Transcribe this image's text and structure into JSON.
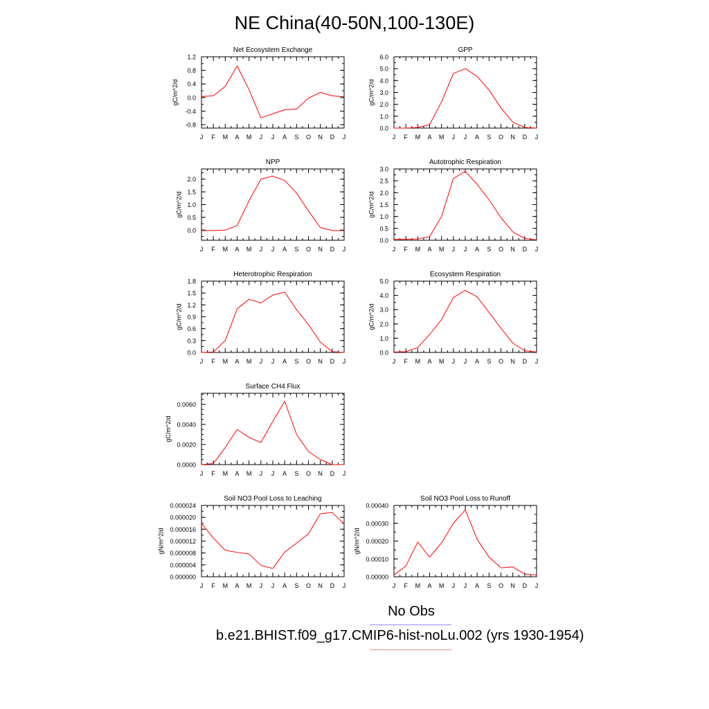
{
  "title": "NE China(40-50N,100-130E)",
  "legend": {
    "obs_label": "No Obs",
    "model_label": "b.e21.BHIST.f09_g17.CMIP6-hist-noLu.002 (yrs 1930-1954)"
  },
  "colors": {
    "series": "#ff0000",
    "obs_line": "#8a8aee",
    "model_line": "#ee8a8a",
    "axis": "#000000"
  },
  "chart_data": [
    {
      "type": "line",
      "title": "Net Ecosystem Exchange",
      "ylabel": "gC/m^2/d",
      "x": [
        "J",
        "F",
        "M",
        "A",
        "M",
        "J",
        "J",
        "A",
        "S",
        "O",
        "N",
        "D",
        "J"
      ],
      "ylim": [
        -0.9,
        1.2
      ],
      "yticks": [
        1.2,
        0.8,
        0.4,
        0.0,
        -0.4,
        -0.8
      ],
      "ytick_labels": [
        "1.2",
        "0.8",
        "0.4",
        "0.0",
        "-0.4",
        "-0.8"
      ],
      "minor_ytick_step": 0.2,
      "series": [
        {
          "values": [
            0.03,
            0.05,
            0.33,
            0.93,
            0.23,
            -0.6,
            -0.48,
            -0.36,
            -0.34,
            -0.02,
            0.15,
            0.05,
            0.02
          ]
        }
      ]
    },
    {
      "type": "line",
      "title": "GPP",
      "ylabel": "gC/m^2/d",
      "x": [
        "J",
        "F",
        "M",
        "A",
        "M",
        "J",
        "J",
        "A",
        "S",
        "O",
        "N",
        "D",
        "J"
      ],
      "ylim": [
        0,
        6
      ],
      "yticks": [
        6,
        5,
        4,
        3,
        2,
        1,
        0
      ],
      "ytick_labels": [
        "6.0",
        "5.0",
        "4.0",
        "3.0",
        "2.0",
        "1.0",
        "0.0"
      ],
      "minor_ytick_step": 0.5,
      "series": [
        {
          "values": [
            0.0,
            0.0,
            0.05,
            0.3,
            2.2,
            4.6,
            5.0,
            4.35,
            3.2,
            1.7,
            0.5,
            0.05,
            0.0
          ]
        }
      ]
    },
    {
      "type": "line",
      "title": "NPP",
      "ylabel": "gC/m^2/d",
      "x": [
        "J",
        "F",
        "M",
        "A",
        "M",
        "J",
        "J",
        "A",
        "S",
        "O",
        "N",
        "D",
        "J"
      ],
      "ylim": [
        -0.4,
        2.4
      ],
      "yticks": [
        2.0,
        1.5,
        1.0,
        0.5,
        0.0
      ],
      "ytick_labels": [
        "2.0",
        "1.5",
        "1.0",
        "0.5",
        "0.0"
      ],
      "minor_ytick_step": 0.25,
      "series": [
        {
          "values": [
            -0.02,
            -0.02,
            0.0,
            0.18,
            1.15,
            2.0,
            2.12,
            1.95,
            1.45,
            0.75,
            0.1,
            -0.02,
            -0.02
          ]
        }
      ]
    },
    {
      "type": "line",
      "title": "Autotrophic Respiration",
      "ylabel": "gC/m^2/d",
      "x": [
        "J",
        "F",
        "M",
        "A",
        "M",
        "J",
        "J",
        "A",
        "S",
        "O",
        "N",
        "D",
        "J"
      ],
      "ylim": [
        0,
        3
      ],
      "yticks": [
        3.0,
        2.5,
        2.0,
        1.5,
        1.0,
        0.5,
        0.0
      ],
      "ytick_labels": [
        "3.0",
        "2.5",
        "2.0",
        "1.5",
        "1.0",
        "0.5",
        "0.0"
      ],
      "minor_ytick_step": 0.25,
      "series": [
        {
          "values": [
            0.04,
            0.04,
            0.06,
            0.15,
            1.0,
            2.6,
            2.9,
            2.35,
            1.7,
            0.95,
            0.35,
            0.08,
            0.02
          ]
        }
      ]
    },
    {
      "type": "line",
      "title": "Heterotrophic Respiration",
      "ylabel": "gC/m^2/d",
      "x": [
        "J",
        "F",
        "M",
        "A",
        "M",
        "J",
        "J",
        "A",
        "S",
        "O",
        "N",
        "D",
        "J"
      ],
      "ylim": [
        0,
        1.8
      ],
      "yticks": [
        1.8,
        1.5,
        1.2,
        0.9,
        0.6,
        0.3,
        0.0
      ],
      "ytick_labels": [
        "1.8",
        "1.5",
        "1.2",
        "0.9",
        "0.6",
        "0.3",
        "0.0"
      ],
      "minor_ytick_step": 0.15,
      "series": [
        {
          "values": [
            0.0,
            0.01,
            0.3,
            1.1,
            1.34,
            1.25,
            1.45,
            1.52,
            1.08,
            0.7,
            0.26,
            0.02,
            0.0
          ]
        }
      ]
    },
    {
      "type": "line",
      "title": "Ecosystem Respiration",
      "ylabel": "gC/m^2/d",
      "x": [
        "J",
        "F",
        "M",
        "A",
        "M",
        "J",
        "J",
        "A",
        "S",
        "O",
        "N",
        "D",
        "J"
      ],
      "ylim": [
        0,
        5
      ],
      "yticks": [
        5.0,
        4.0,
        3.0,
        2.0,
        1.0,
        0.0
      ],
      "ytick_labels": [
        "5.0",
        "4.0",
        "3.0",
        "2.0",
        "1.0",
        "0.0"
      ],
      "minor_ytick_step": 0.5,
      "series": [
        {
          "values": [
            0.03,
            0.05,
            0.35,
            1.25,
            2.3,
            3.85,
            4.35,
            3.9,
            2.8,
            1.7,
            0.65,
            0.12,
            0.03
          ]
        }
      ]
    },
    {
      "type": "line",
      "title": "Surface CH4 Flux",
      "ylabel": "gC/m^2/d",
      "x": [
        "J",
        "F",
        "M",
        "A",
        "M",
        "J",
        "J",
        "A",
        "S",
        "O",
        "N",
        "D",
        "J"
      ],
      "ylim": [
        0,
        0.0071
      ],
      "yticks": [
        0.006,
        0.004,
        0.002,
        0.0
      ],
      "ytick_labels": [
        "0.0060",
        "0.0040",
        "0.0020",
        "0.0000"
      ],
      "minor_ytick_step": 0.0005,
      "series": [
        {
          "values": [
            0.0,
            0.0001,
            0.0017,
            0.0035,
            0.0027,
            0.0022,
            0.0043,
            0.0063,
            0.003,
            0.0013,
            0.0005,
            0.0,
            0.0
          ]
        }
      ]
    },
    null,
    {
      "type": "line",
      "title": "Soil NO3 Pool Loss to Leaching",
      "ylabel": "gN/m^2/d",
      "x": [
        "J",
        "F",
        "M",
        "A",
        "M",
        "J",
        "J",
        "A",
        "S",
        "O",
        "N",
        "D",
        "J"
      ],
      "ylim": [
        0,
        2.4e-05
      ],
      "yticks": [
        2.4e-05,
        2e-05,
        1.6e-05,
        1.2e-05,
        8e-06,
        4e-06,
        0.0
      ],
      "ytick_labels": [
        "0.000024",
        "0.000020",
        "0.000016",
        "0.000012",
        "0.000008",
        "0.000004",
        "0.000000"
      ],
      "minor_ytick_step": 2e-06,
      "series": [
        {
          "values": [
            1.8e-05,
            1.3e-05,
            8.9e-06,
            8.2e-06,
            7.7e-06,
            3.8e-06,
            2.8e-06,
            8.3e-06,
            1.13e-05,
            1.45e-05,
            2.12e-05,
            2.16e-05,
            1.78e-05
          ]
        }
      ]
    },
    {
      "type": "line",
      "title": "Soil NO3 Pool Loss to Runoff",
      "ylabel": "gN/m^2/d",
      "x": [
        "J",
        "F",
        "M",
        "A",
        "M",
        "J",
        "J",
        "A",
        "S",
        "O",
        "N",
        "D",
        "J"
      ],
      "ylim": [
        0,
        0.0004
      ],
      "yticks": [
        0.0004,
        0.0003,
        0.0002,
        0.0001,
        0.0
      ],
      "ytick_labels": [
        "0.00040",
        "0.00030",
        "0.00020",
        "0.00010",
        "0.00000"
      ],
      "minor_ytick_step": 5e-05,
      "series": [
        {
          "values": [
            1e-05,
            6e-05,
            0.000195,
            0.00011,
            0.00019,
            0.0003,
            0.000375,
            0.00021,
            0.00011,
            5e-05,
            5.5e-05,
            1.5e-05,
            1e-05
          ]
        }
      ]
    }
  ]
}
